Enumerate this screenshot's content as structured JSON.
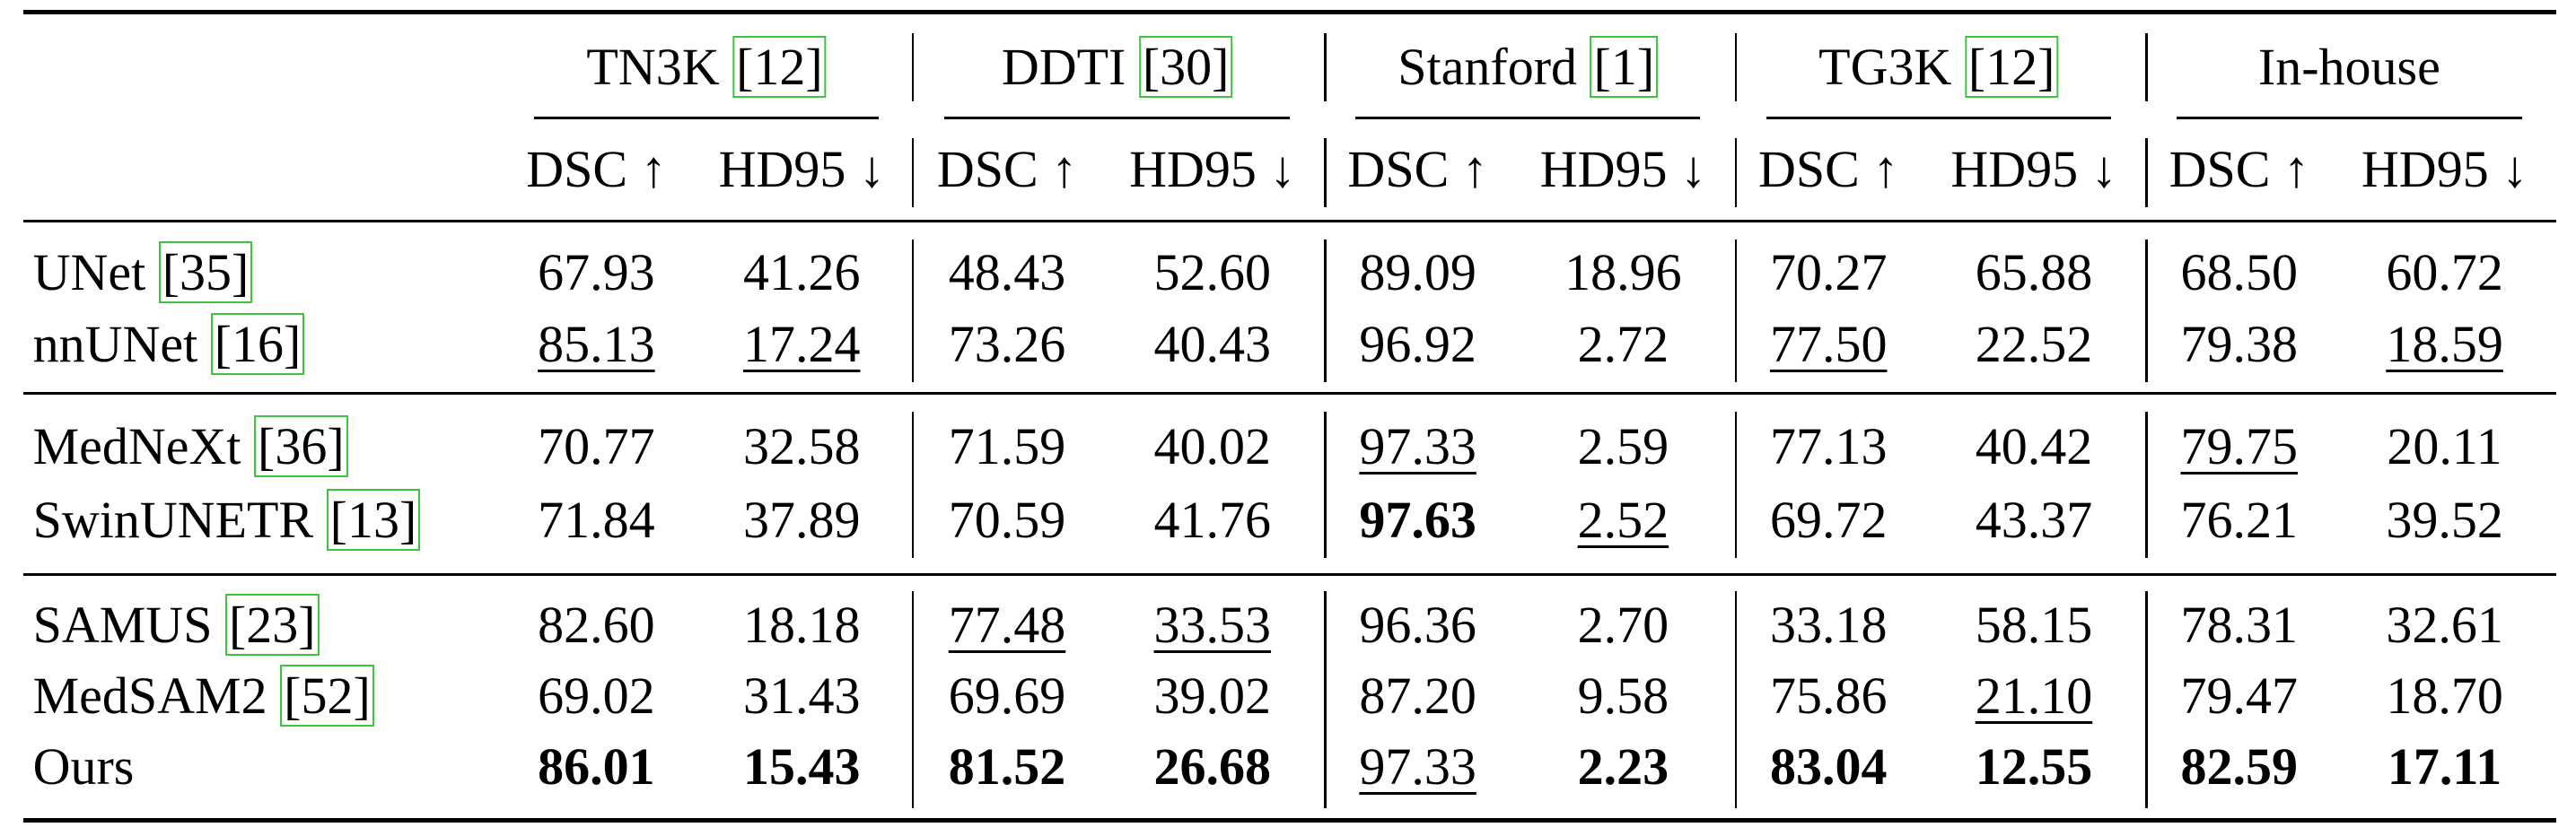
{
  "table": {
    "groups": [
      {
        "name": "TN3K",
        "cite": "[12]"
      },
      {
        "name": "DDTI",
        "cite": "[30]"
      },
      {
        "name": "Stanford",
        "cite": "[1]"
      },
      {
        "name": "TG3K",
        "cite": "[12]"
      },
      {
        "name": "In-house"
      }
    ],
    "metrics": [
      "DSC ↑",
      "HD95 ↓"
    ],
    "sections": [
      [
        {
          "method": "UNet",
          "cite": "[35]",
          "values": [
            "67.93",
            "41.26",
            "48.43",
            "52.60",
            "89.09",
            "18.96",
            "70.27",
            "65.88",
            "68.50",
            "60.72"
          ]
        },
        {
          "method": "nnUNet",
          "cite": "[16]",
          "values": [
            "85.13",
            "17.24",
            "73.26",
            "40.43",
            "96.92",
            "2.72",
            "77.50",
            "22.52",
            "79.38",
            "18.59"
          ],
          "underline": [
            0,
            1,
            6,
            9
          ]
        }
      ],
      [
        {
          "method": "MedNeXt",
          "cite": "[36]",
          "values": [
            "70.77",
            "32.58",
            "71.59",
            "40.02",
            "97.33",
            "2.59",
            "77.13",
            "40.42",
            "79.75",
            "20.11"
          ],
          "underline": [
            4,
            8
          ]
        },
        {
          "method": "SwinUNETR",
          "cite": "[13]",
          "values": [
            "71.84",
            "37.89",
            "70.59",
            "41.76",
            "97.63",
            "2.52",
            "69.72",
            "43.37",
            "76.21",
            "39.52"
          ],
          "bold": [
            4
          ],
          "underline": [
            5
          ]
        }
      ],
      [
        {
          "method": "SAMUS",
          "cite": "[23]",
          "values": [
            "82.60",
            "18.18",
            "77.48",
            "33.53",
            "96.36",
            "2.70",
            "33.18",
            "58.15",
            "78.31",
            "32.61"
          ],
          "underline": [
            2,
            3
          ]
        },
        {
          "method": "MedSAM2",
          "cite": "[52]",
          "values": [
            "69.02",
            "31.43",
            "69.69",
            "39.02",
            "87.20",
            "9.58",
            "75.86",
            "21.10",
            "79.47",
            "18.70"
          ],
          "underline": [
            7
          ]
        },
        {
          "method": "Ours",
          "values": [
            "86.01",
            "15.43",
            "81.52",
            "26.68",
            "97.33",
            "2.23",
            "83.04",
            "12.55",
            "82.59",
            "17.11"
          ],
          "bold": [
            0,
            1,
            2,
            3,
            5,
            6,
            7,
            8,
            9
          ],
          "underline": [
            4
          ]
        }
      ]
    ]
  }
}
